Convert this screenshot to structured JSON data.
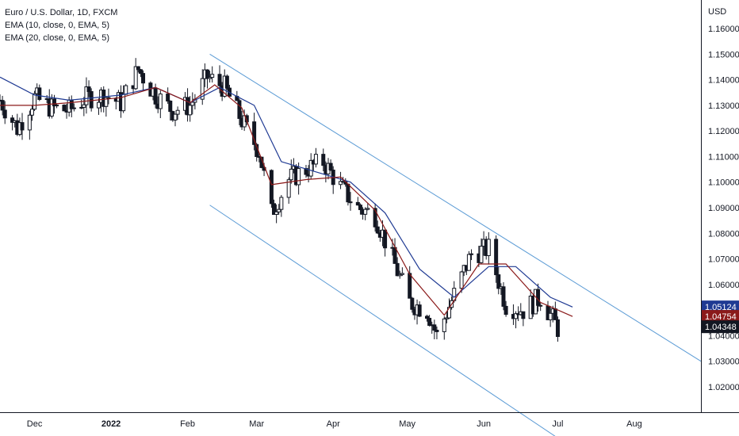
{
  "legend": {
    "title": "Euro / U.S. Dollar, 1D, FXCM",
    "ema10": "EMA (10, close, 0, EMA, 5)",
    "ema20": "EMA (20, close, 0, EMA, 5)"
  },
  "chart_data": {
    "type": "candlestick",
    "currency_label": "USD",
    "y_ticks": [
      "1.16000",
      "1.15000",
      "1.14000",
      "1.13000",
      "1.12000",
      "1.11000",
      "1.10000",
      "1.09000",
      "1.08000",
      "1.07000",
      "1.06000",
      "1.05000",
      "1.04000",
      "1.03000",
      "1.02000"
    ],
    "ylim": [
      1.01,
      1.17
    ],
    "x_ticks": [
      {
        "label": "Dec",
        "date": "2021-12-01",
        "bold": false
      },
      {
        "label": "2022",
        "date": "2022-01-01",
        "bold": true
      },
      {
        "label": "Feb",
        "date": "2022-02-01",
        "bold": false
      },
      {
        "label": "Mar",
        "date": "2022-03-01",
        "bold": false
      },
      {
        "label": "Apr",
        "date": "2022-04-01",
        "bold": false
      },
      {
        "label": "May",
        "date": "2022-05-01",
        "bold": false
      },
      {
        "label": "Jun",
        "date": "2022-06-01",
        "bold": false
      },
      {
        "label": "Jul",
        "date": "2022-07-01",
        "bold": false
      },
      {
        "label": "Aug",
        "date": "2022-08-01",
        "bold": false
      }
    ],
    "xlim": [
      "2021-11-17",
      "2022-08-28"
    ],
    "colors": {
      "ema10": "#8b1a1a",
      "ema20": "#1f3a93",
      "channel": "#5b9bd5",
      "candle": "#131722"
    },
    "price_badges": [
      {
        "label": "1.05124",
        "value": 1.05124,
        "color": "#1f3a93"
      },
      {
        "label": "1.04754",
        "value": 1.04754,
        "color": "#8b1a1a"
      },
      {
        "label": "1.04348",
        "value": 1.04348,
        "color": "#131722"
      }
    ],
    "channel_upper": [
      [
        "2022-02-10",
        1.15
      ],
      [
        "2022-08-28",
        1.03
      ]
    ],
    "channel_lower": [
      [
        "2022-02-10",
        1.091
      ],
      [
        "2022-07-01",
        1.0
      ]
    ],
    "closes": [
      [
        "2021-11-17",
        1.132
      ],
      [
        "2021-11-24",
        1.121
      ],
      [
        "2021-12-01",
        1.133
      ],
      [
        "2021-12-08",
        1.129
      ],
      [
        "2021-12-15",
        1.128
      ],
      [
        "2021-12-22",
        1.133
      ],
      [
        "2021-12-29",
        1.134
      ],
      [
        "2022-01-05",
        1.131
      ],
      [
        "2022-01-12",
        1.144
      ],
      [
        "2022-01-19",
        1.134
      ],
      [
        "2022-01-26",
        1.128
      ],
      [
        "2022-02-02",
        1.13
      ],
      [
        "2022-02-09",
        1.141
      ],
      [
        "2022-02-16",
        1.137
      ],
      [
        "2022-02-23",
        1.124
      ],
      [
        "2022-03-02",
        1.112
      ],
      [
        "2022-03-07",
        1.088
      ],
      [
        "2022-03-14",
        1.101
      ],
      [
        "2022-03-21",
        1.105
      ],
      [
        "2022-03-28",
        1.108
      ],
      [
        "2022-04-04",
        1.098
      ],
      [
        "2022-04-11",
        1.09
      ],
      [
        "2022-04-18",
        1.087
      ],
      [
        "2022-04-25",
        1.07
      ],
      [
        "2022-05-02",
        1.053
      ],
      [
        "2022-05-09",
        1.05
      ],
      [
        "2022-05-13",
        1.04
      ],
      [
        "2022-05-20",
        1.056
      ],
      [
        "2022-05-27",
        1.072
      ],
      [
        "2022-06-03",
        1.074
      ],
      [
        "2022-06-10",
        1.052
      ],
      [
        "2022-06-17",
        1.05
      ],
      [
        "2022-06-24",
        1.055
      ],
      [
        "2022-07-01",
        1.043
      ]
    ],
    "ema10": [
      [
        "2021-11-17",
        1.13
      ],
      [
        "2021-12-01",
        1.13
      ],
      [
        "2021-12-15",
        1.131
      ],
      [
        "2022-01-05",
        1.133
      ],
      [
        "2022-01-19",
        1.137
      ],
      [
        "2022-02-02",
        1.131
      ],
      [
        "2022-02-12",
        1.138
      ],
      [
        "2022-02-23",
        1.129
      ],
      [
        "2022-03-07",
        1.099
      ],
      [
        "2022-03-21",
        1.101
      ],
      [
        "2022-04-04",
        1.102
      ],
      [
        "2022-04-18",
        1.089
      ],
      [
        "2022-05-02",
        1.064
      ],
      [
        "2022-05-16",
        1.048
      ],
      [
        "2022-05-30",
        1.068
      ],
      [
        "2022-06-10",
        1.068
      ],
      [
        "2022-06-24",
        1.053
      ],
      [
        "2022-07-07",
        1.0475
      ]
    ],
    "ema20": [
      [
        "2021-11-17",
        1.141
      ],
      [
        "2021-12-01",
        1.134
      ],
      [
        "2021-12-15",
        1.132
      ],
      [
        "2022-01-05",
        1.134
      ],
      [
        "2022-01-19",
        1.137
      ],
      [
        "2022-02-02",
        1.131
      ],
      [
        "2022-02-14",
        1.137
      ],
      [
        "2022-02-28",
        1.13
      ],
      [
        "2022-03-11",
        1.108
      ],
      [
        "2022-03-25",
        1.104
      ],
      [
        "2022-04-08",
        1.1
      ],
      [
        "2022-04-22",
        1.088
      ],
      [
        "2022-05-06",
        1.066
      ],
      [
        "2022-05-20",
        1.055
      ],
      [
        "2022-06-03",
        1.067
      ],
      [
        "2022-06-14",
        1.067
      ],
      [
        "2022-06-28",
        1.055
      ],
      [
        "2022-07-07",
        1.0512
      ]
    ]
  }
}
